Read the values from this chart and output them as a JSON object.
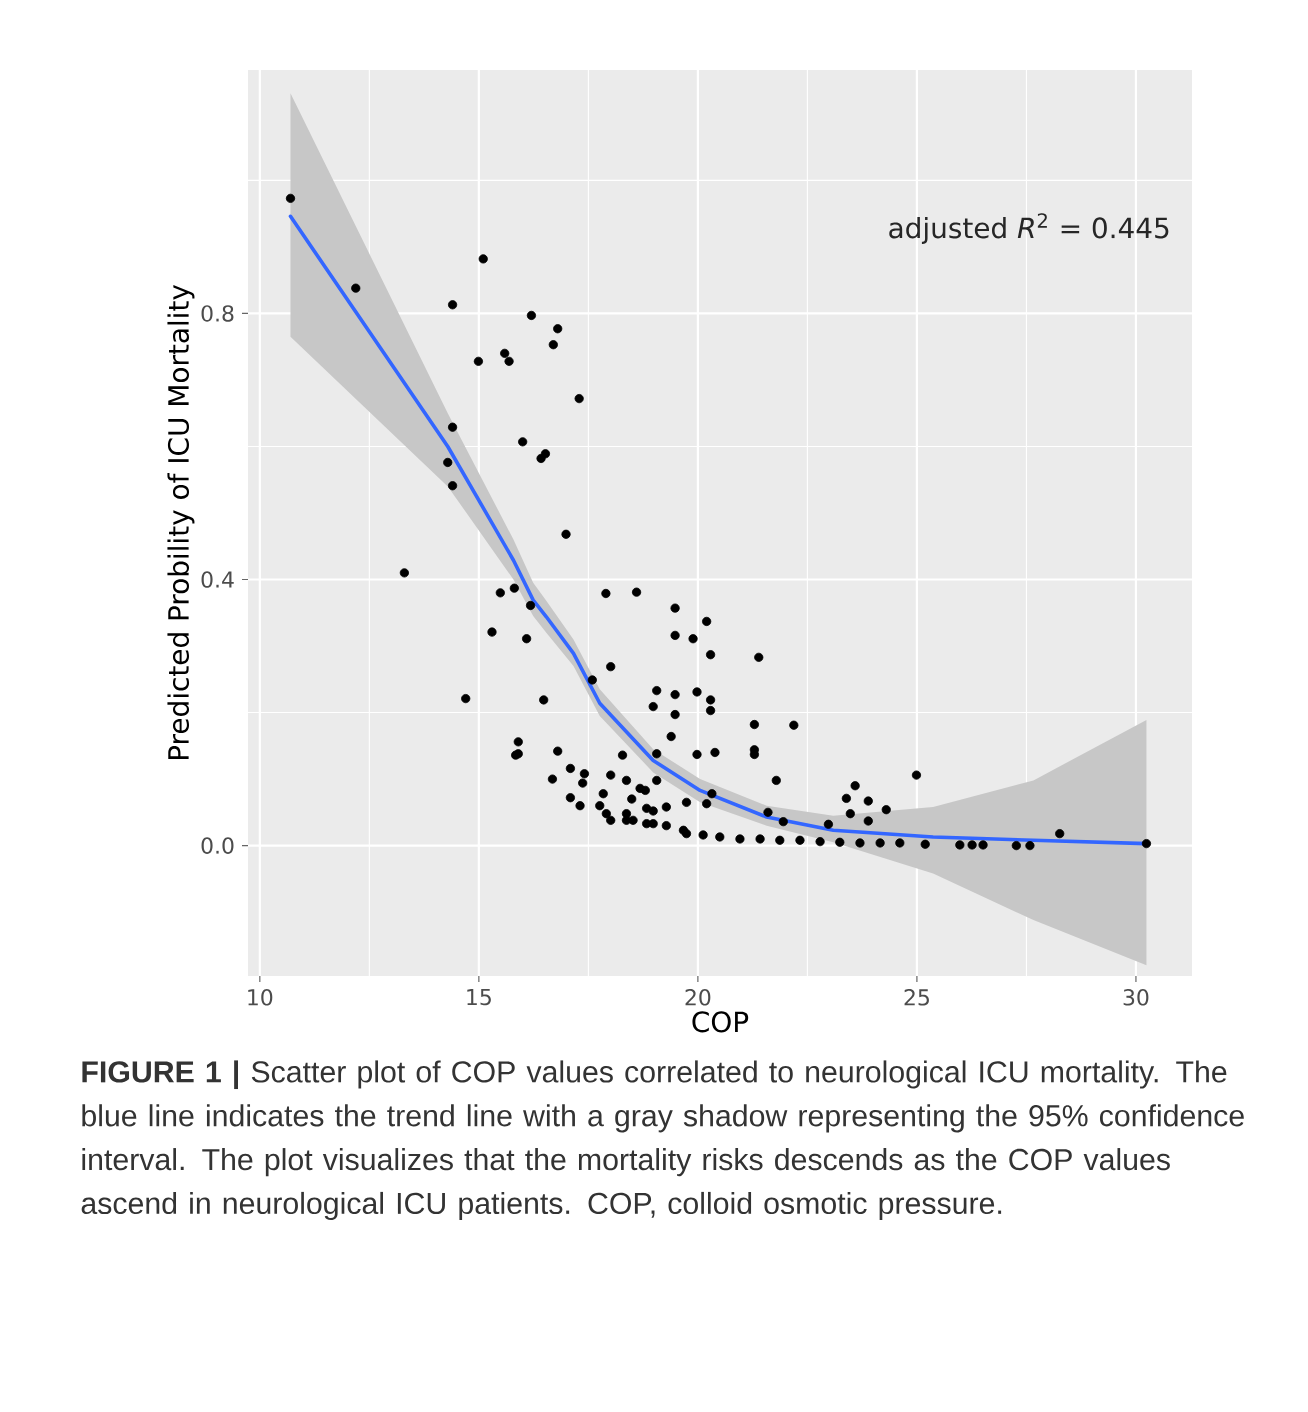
{
  "chart_data": {
    "type": "scatter",
    "xlabel": "COP",
    "ylabel": "Predicted Probility of ICU Mortality",
    "xlim": [
      9.73,
      31.28
    ],
    "ylim": [
      -0.196,
      1.166
    ],
    "xticks": [
      10,
      15,
      20,
      25,
      30
    ],
    "yticks": [
      {
        "value": 0,
        "label": "0.0"
      },
      {
        "value": 0.4,
        "label": "0.4"
      },
      {
        "value": 0.8,
        "label": "0.8"
      }
    ],
    "grid": true,
    "annotations": [
      "adjusted *R*$^{2}$ = 0.445",
      "**FIGURE 1 |** Scatter plot of COP values correlated to neurological ICU mortality. The blue line indicates the trend line with a gray shadow representing the 95% confidence interval. The plot visualizes that the mortality risks descends as the COP values ascend in neurological ICU patients. COP, colloid osmotic pressure."
    ],
    "series": [
      {
        "marker": "circle",
        "color": "#000000",
        "x": [
          10.7,
          12.19,
          14.4,
          15.1,
          14.99,
          15.59,
          15.69,
          16.2,
          16.8,
          16.7,
          17.29,
          14.4,
          14.29,
          14.4,
          16.0,
          16.42,
          16.52,
          16.99,
          13.3,
          15.49,
          15.81,
          16.18,
          15.3,
          16.09,
          17.9,
          18.6,
          18.01,
          17.59,
          14.7,
          16.48,
          15.9,
          15.9,
          15.84,
          16.8,
          18.28,
          16.68,
          17.09,
          17.41,
          17.37,
          17.09,
          17.31,
          18.01,
          17.84,
          17.76,
          17.91,
          18.01,
          18.37,
          18.49,
          18.37,
          18.52,
          18.8,
          18.83,
          18.98,
          19.06,
          19.06,
          19.06,
          18.98,
          19.48,
          20.2,
          19.48,
          19.89,
          20.29,
          21.39,
          19.48,
          19.98,
          20.29,
          20.29,
          19.48,
          21.29,
          22.19,
          19.39,
          21.29,
          21.29,
          19.98,
          20.39,
          21.79,
          24.99,
          23.59,
          23.39,
          23.89,
          24.3,
          23.48,
          23.89,
          22.98,
          21.6,
          21.95,
          20.32,
          20.2,
          19.74,
          19.28,
          18.98,
          18.68,
          19.74,
          20.12,
          20.5,
          20.96,
          21.42,
          21.87,
          22.33,
          22.79,
          23.24,
          23.7,
          24.16,
          24.61,
          25.19,
          25.98,
          26.26,
          26.51,
          27.27,
          27.58,
          28.26,
          30.24,
          18.37,
          18.83,
          19.28,
          19.67
        ],
        "values": [
          0.973,
          0.838,
          0.813,
          0.882,
          0.728,
          0.74,
          0.728,
          0.797,
          0.777,
          0.753,
          0.672,
          0.629,
          0.576,
          0.541,
          0.607,
          0.582,
          0.589,
          0.468,
          0.41,
          0.38,
          0.387,
          0.361,
          0.321,
          0.311,
          0.379,
          0.381,
          0.269,
          0.249,
          0.221,
          0.219,
          0.156,
          0.138,
          0.136,
          0.142,
          0.136,
          0.1,
          0.116,
          0.108,
          0.094,
          0.072,
          0.06,
          0.106,
          0.078,
          0.06,
          0.048,
          0.038,
          0.098,
          0.07,
          0.048,
          0.038,
          0.083,
          0.056,
          0.033,
          0.138,
          0.098,
          0.233,
          0.209,
          0.357,
          0.337,
          0.316,
          0.311,
          0.287,
          0.283,
          0.227,
          0.231,
          0.219,
          0.203,
          0.197,
          0.182,
          0.181,
          0.164,
          0.144,
          0.137,
          0.137,
          0.14,
          0.098,
          0.106,
          0.09,
          0.071,
          0.067,
          0.054,
          0.048,
          0.037,
          0.032,
          0.05,
          0.036,
          0.078,
          0.063,
          0.065,
          0.058,
          0.052,
          0.086,
          0.018,
          0.016,
          0.013,
          0.01,
          0.01,
          0.008,
          0.008,
          0.006,
          0.005,
          0.004,
          0.004,
          0.004,
          0.002,
          0.001,
          0.001,
          0.001,
          0.0,
          0.0,
          0.018,
          0.003,
          0.038,
          0.033,
          0.03,
          0.023
        ]
      },
      {
        "type": "line",
        "marker": "none",
        "color": "#3366ff",
        "line_style": "solid",
        "x": [
          10.7,
          14.29,
          15.79,
          16.24,
          16.54,
          17.16,
          17.76,
          18.98,
          20.05,
          21.57,
          23.09,
          25.37,
          27.66,
          30.24
        ],
        "values": [
          0.946,
          0.6,
          0.429,
          0.369,
          0.344,
          0.289,
          0.214,
          0.128,
          0.083,
          0.043,
          0.023,
          0.013,
          0.008,
          0.003
        ],
        "lower": [
          0.765,
          0.54,
          0.4,
          0.345,
          0.32,
          0.27,
          0.195,
          0.11,
          0.065,
          0.03,
          0.005,
          -0.042,
          -0.112,
          -0.18
        ],
        "upper": [
          1.131,
          0.65,
          0.46,
          0.395,
          0.368,
          0.31,
          0.235,
          0.145,
          0.1,
          0.06,
          0.045,
          0.058,
          0.098,
          0.189
        ]
      }
    ]
  }
}
